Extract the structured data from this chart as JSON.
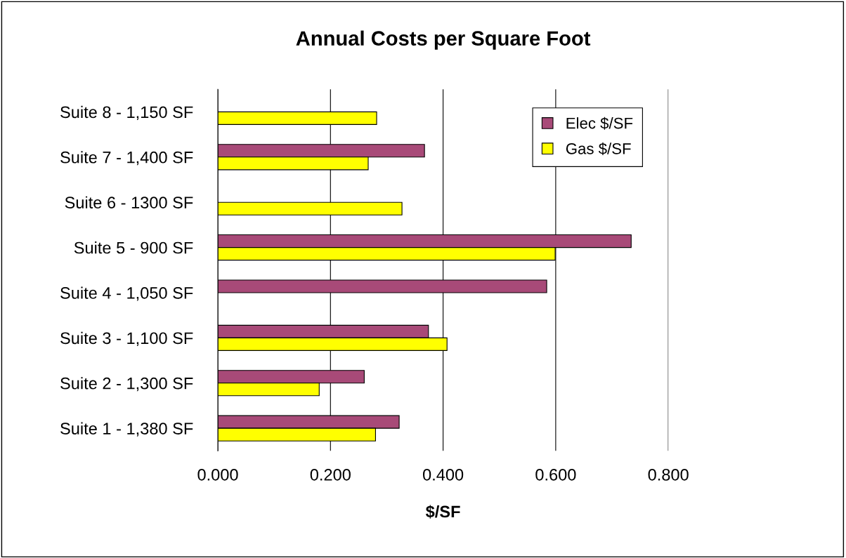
{
  "chart_data": {
    "type": "bar",
    "orientation": "horizontal",
    "title": "Annual Costs per Square Foot",
    "xlabel": "$/SF",
    "categories": [
      "Suite 8 - 1,150 SF",
      "Suite 7 - 1,400 SF",
      "Suite 6 - 1300 SF",
      "Suite 5 - 900 SF",
      "Suite 4 - 1,050 SF",
      "Suite 3 - 1,100 SF",
      "Suite 2 - 1,300 SF",
      "Suite 1 - 1,380 SF"
    ],
    "series": [
      {
        "name": "Elec $/SF",
        "color": "#a84a78",
        "values": [
          null,
          0.367,
          null,
          0.734,
          0.584,
          0.374,
          0.26,
          0.322
        ]
      },
      {
        "name": "Gas $/SF",
        "color": "#ffff00",
        "values": [
          0.282,
          0.267,
          0.327,
          0.599,
          null,
          0.407,
          0.18,
          0.28
        ]
      }
    ],
    "xlim": [
      0,
      0.8
    ],
    "xticks": [
      {
        "value": 0,
        "label": "0.000"
      },
      {
        "value": 0.2,
        "label": "0.200"
      },
      {
        "value": 0.4,
        "label": "0.400"
      },
      {
        "value": 0.6,
        "label": "0.600"
      },
      {
        "value": 0.8,
        "label": "0.800"
      }
    ],
    "grid": "x",
    "legend": "top right"
  }
}
